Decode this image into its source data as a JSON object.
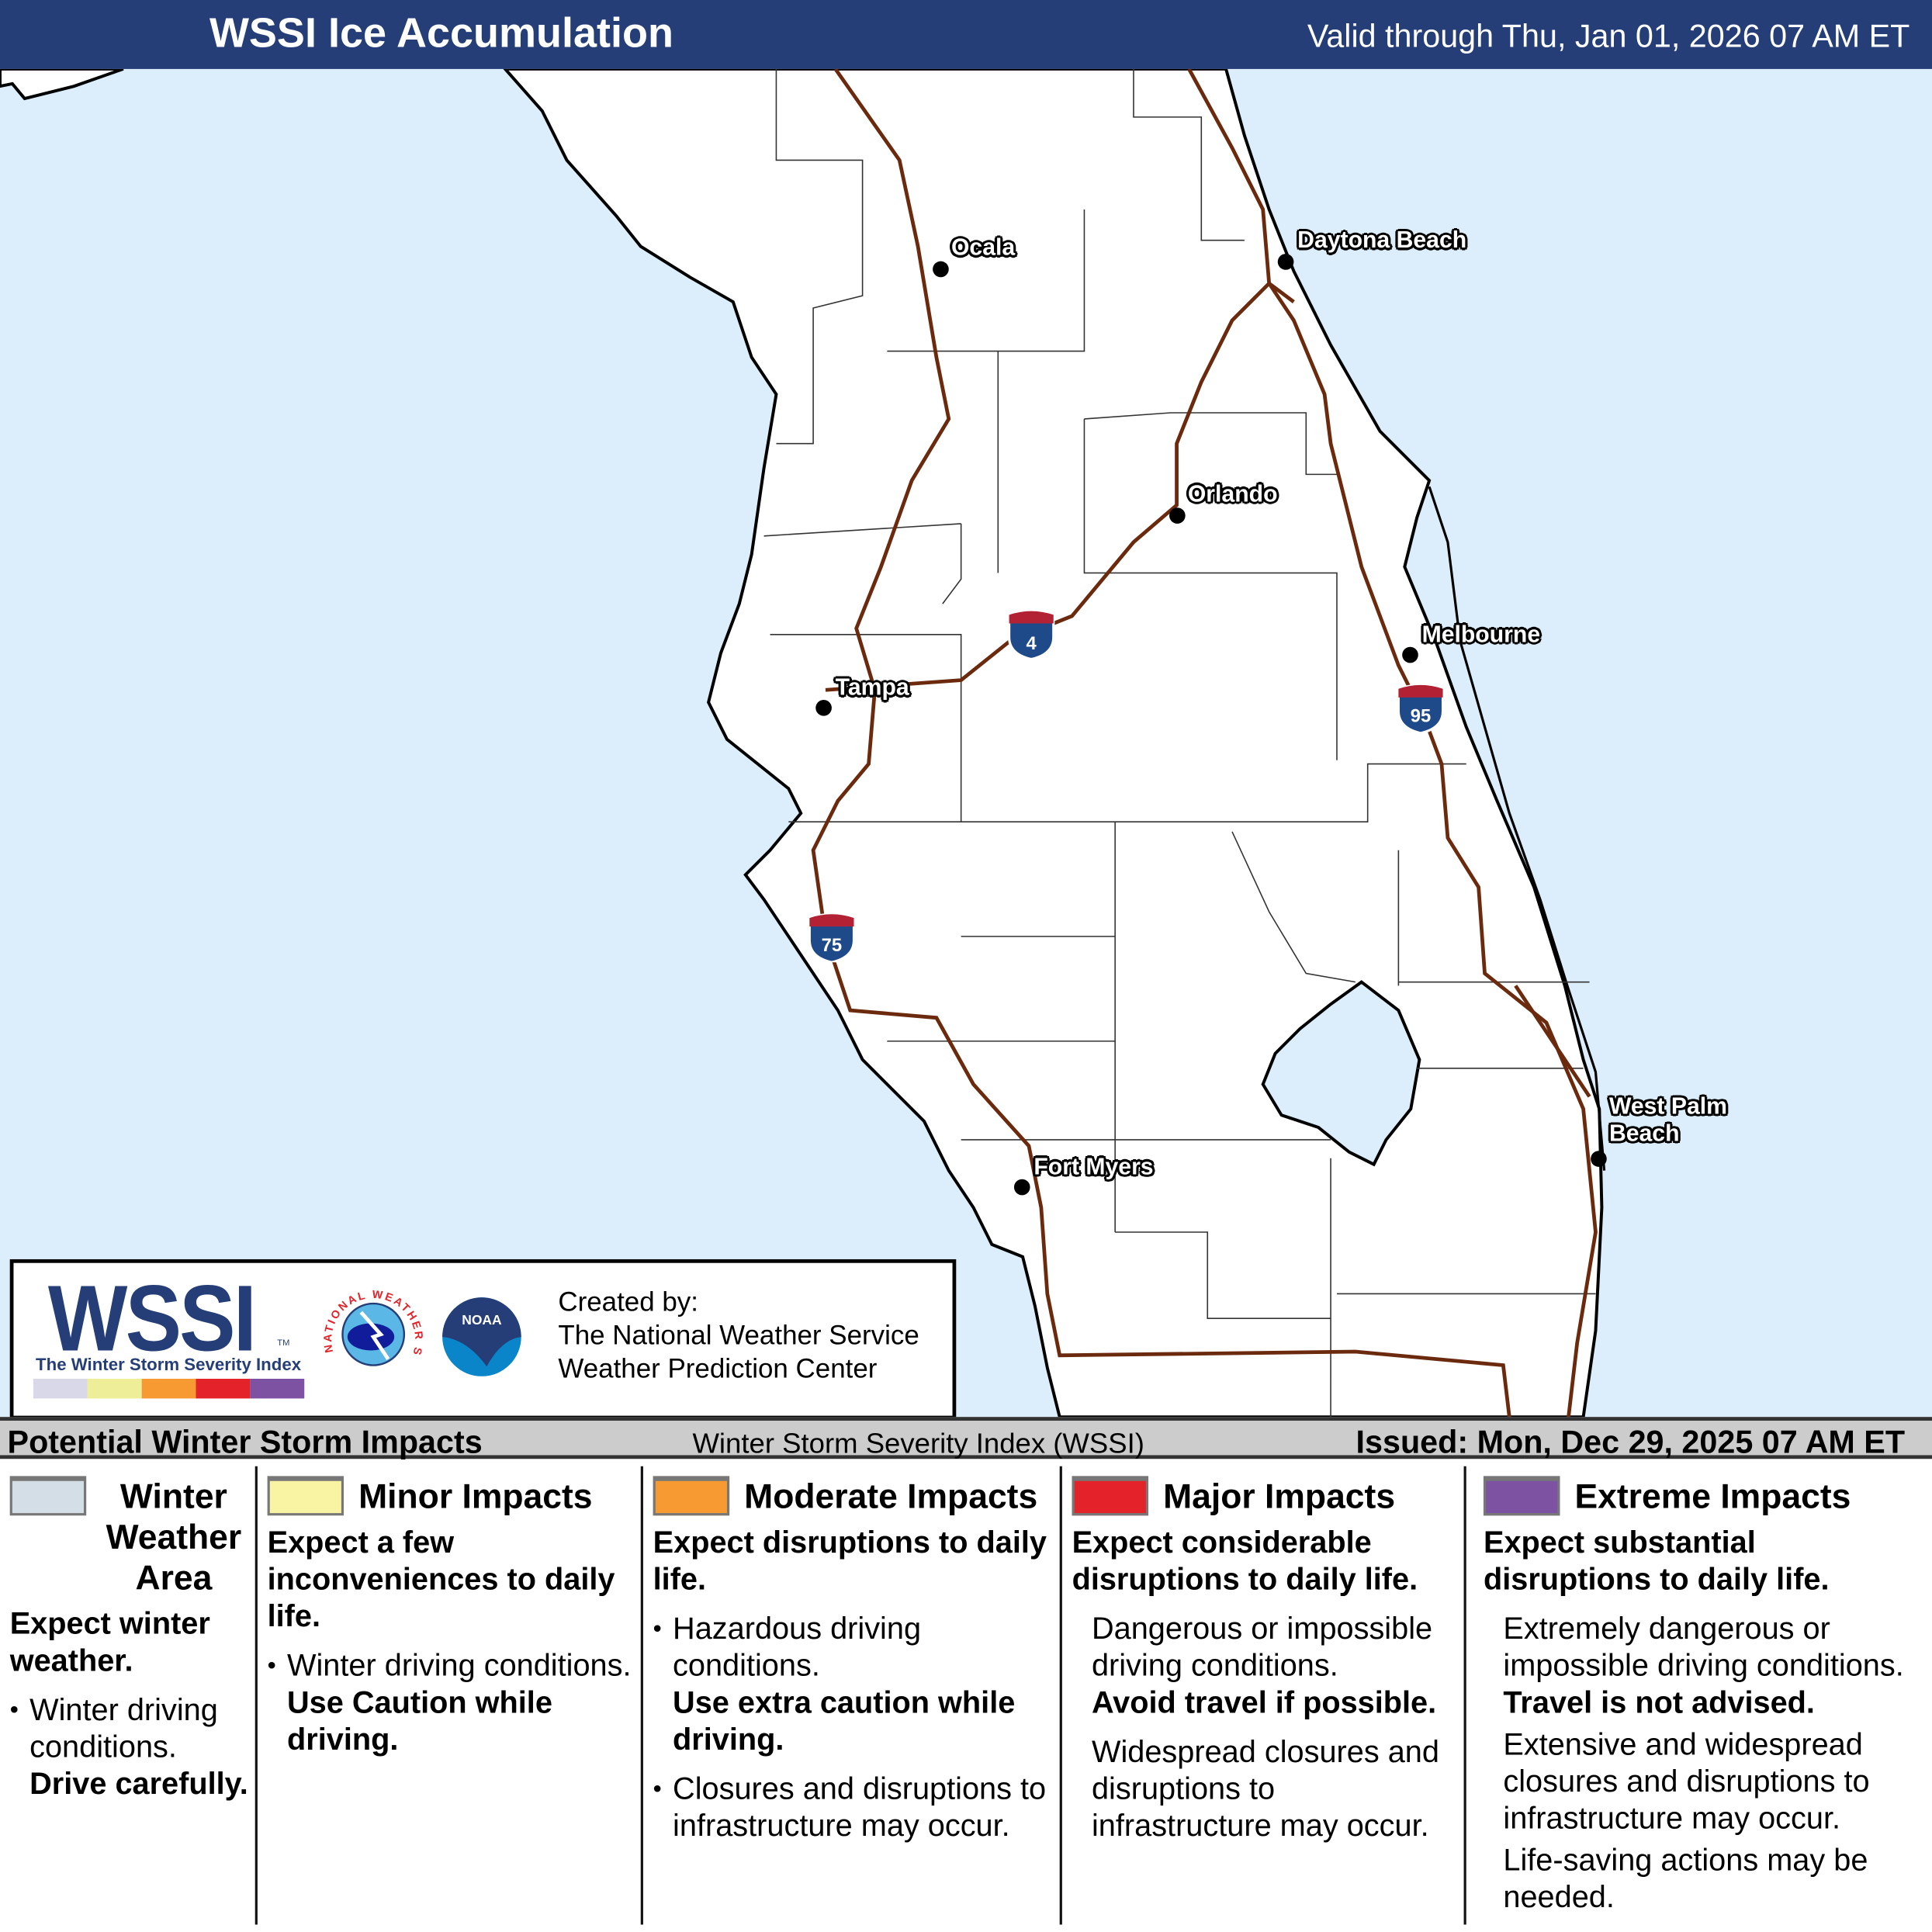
{
  "header": {
    "title": "WSSI Ice Accumulation",
    "valid": "Valid through Thu, Jan 01, 2026 07 AM ET",
    "bg": "#253e78"
  },
  "map": {
    "ocean_color": "#dceefb",
    "land_color": "#ffffff",
    "road_color": "#6b2a0e",
    "cities": [
      {
        "name": "Ocala",
        "label": "Ocala"
      },
      {
        "name": "Daytona Beach",
        "label": "Daytona Beach"
      },
      {
        "name": "Orlando",
        "label": "Orlando"
      },
      {
        "name": "Melbourne",
        "label": "Melbourne"
      },
      {
        "name": "Tampa",
        "label": "Tampa"
      },
      {
        "name": "West Palm Beach",
        "label": "West Palm\nBeach"
      },
      {
        "name": "Fort Myers",
        "label": "Fort Myers"
      }
    ],
    "interstates": [
      "4",
      "95",
      "75"
    ]
  },
  "logo": {
    "wssi": "WSSI",
    "tm": "TM",
    "subtitle": "The Winter Storm Severity Index",
    "nws_text": "NATIONAL WEATHER SERVICE",
    "noaa_text": "NOAA",
    "created_by": "Created by:",
    "org1": "The National Weather Service",
    "org2": "Weather Prediction Center",
    "scale_colors": [
      "#d9d8e8",
      "#eeee99",
      "#f79a32",
      "#e3222a",
      "#7d52a3"
    ]
  },
  "infobar": {
    "left": "Potential Winter Storm Impacts",
    "middle": "Winter Storm Severity Index (WSSI)",
    "right": "Issued: Mon, Dec 29, 2025 07 AM ET"
  },
  "legend": [
    {
      "title": "Winter Weather Area",
      "color": "#d3dee6",
      "sub": "Expect winter weather.",
      "body": [
        "Winter driving conditions.",
        "Drive carefully."
      ]
    },
    {
      "title": "Minor Impacts",
      "color": "#f8f4a3",
      "sub": "Expect a few inconveniences to daily life.",
      "body": [
        "Winter driving conditions.",
        "Use Caution while driving."
      ]
    },
    {
      "title": "Moderate Impacts",
      "color": "#f79a32",
      "sub": "Expect disruptions to daily life.",
      "body": [
        "Hazardous driving conditions.",
        "Use extra caution while driving.",
        "Closures and disruptions to infrastructure may occur."
      ]
    },
    {
      "title": "Major Impacts",
      "color": "#e3222a",
      "sub": "Expect considerable disruptions to daily life.",
      "body": [
        "Dangerous or impossible driving conditions.",
        "Avoid travel if possible.",
        "Widespread closures and disruptions to infrastructure may occur."
      ]
    },
    {
      "title": "Extreme Impacts",
      "color": "#7d52a3",
      "sub": "Expect substantial disruptions to daily life.",
      "body": [
        "Extremely dangerous or impossible driving conditions.",
        "Travel is not advised.",
        "Extensive and widespread closures and disruptions to infrastructure may occur.",
        "Life-saving actions may be needed."
      ]
    }
  ]
}
